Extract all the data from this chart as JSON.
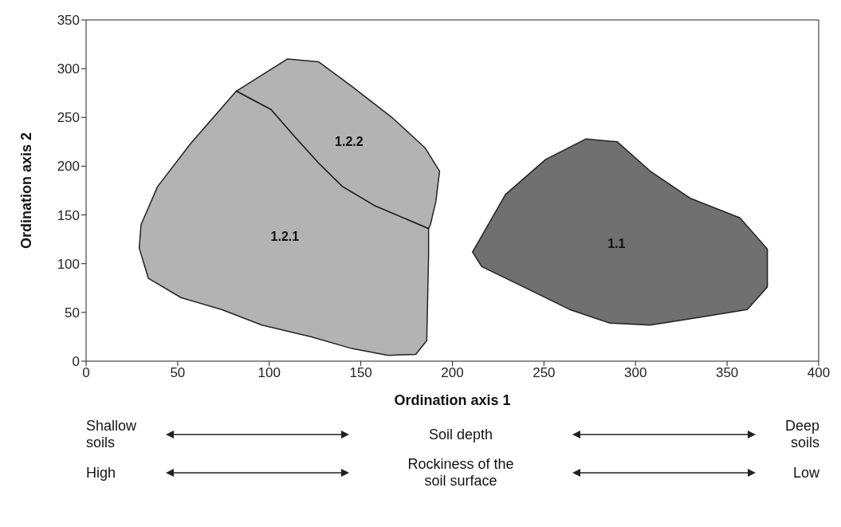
{
  "chart_data": {
    "type": "area",
    "xlabel": "Ordination axis 1",
    "ylabel": "Ordination axis 2",
    "xlim": [
      0,
      400
    ],
    "xticks": [
      0,
      50,
      100,
      150,
      200,
      250,
      300,
      350,
      400
    ],
    "ylim": [
      0,
      350
    ],
    "yticks": [
      0,
      50,
      100,
      150,
      200,
      250,
      300,
      350
    ],
    "marker": "none",
    "line_style": "solid",
    "series": [
      {
        "name": "1.2.2",
        "color": "#b3b3b3",
        "x": [
          82,
          101,
          114,
          127,
          140,
          158,
          187,
          188,
          191,
          193,
          185,
          167,
          145,
          127,
          110,
          82
        ],
        "values": [
          277,
          258,
          230,
          203,
          179,
          159,
          136,
          140,
          164,
          195,
          219,
          250,
          282,
          307,
          310,
          277
        ]
      },
      {
        "name": "1.2.1",
        "color": "#b3b3b3",
        "x": [
          82,
          101,
          114,
          127,
          140,
          158,
          187,
          187,
          186,
          180,
          165,
          145,
          123,
          96,
          74,
          52,
          34,
          29,
          30,
          39,
          57,
          82
        ],
        "values": [
          277,
          258,
          230,
          203,
          179,
          159,
          136,
          108,
          21,
          7,
          6,
          13,
          25,
          37,
          53,
          65,
          85,
          116,
          140,
          179,
          223,
          277
        ]
      },
      {
        "name": "1.1",
        "color": "#707070",
        "x": [
          211,
          229,
          251,
          273,
          290,
          308,
          330,
          357,
          372,
          372,
          361,
          335,
          308,
          286,
          264,
          238,
          216,
          211
        ],
        "values": [
          112,
          171,
          207,
          228,
          225,
          195,
          167,
          147,
          115,
          76,
          53,
          45,
          37,
          39,
          53,
          77,
          97,
          112
        ]
      }
    ],
    "annotations": [
      "Shallow soils",
      "Soil depth",
      "Deep soils",
      "High",
      "Rockiness of the soil surface",
      "Low"
    ]
  }
}
